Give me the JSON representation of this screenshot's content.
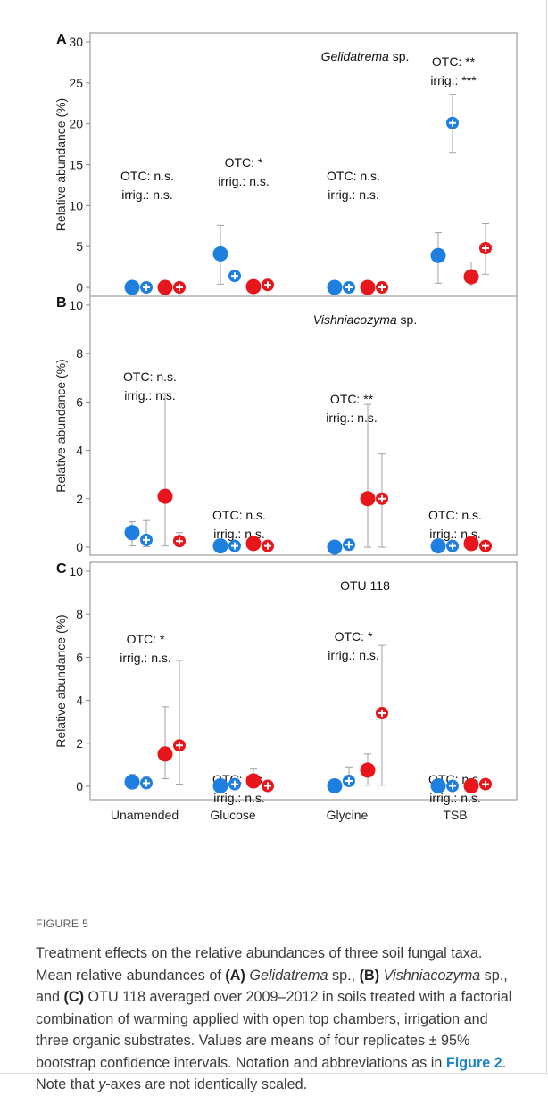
{
  "figure_label": "FIGURE 5",
  "caption": {
    "t1": "Treatment effects on the relative abundances of three soil fungal taxa. Mean relative abundances of ",
    "a_label": "(A)",
    "a_taxon": "Gelidatrema",
    "a_rest": " sp., ",
    "b_label": "(B)",
    "b_taxon": "Vishniacozyma",
    "b_rest": " sp., and ",
    "c_label": "(C)",
    "c_rest": " OTU 118 averaged over 2009–2012 in soils treated with a factorial combination of warming applied with open top chambers, irrigation and three organic substrates. Values are means of four replicates ± 95% bootstrap confidence intervals. Notation and abbreviations as in ",
    "link": "Figure 2",
    "t2": ". Note that ",
    "y_ital": "y",
    "t3": "-axes are not identically scaled."
  },
  "colors": {
    "blue": "#1f7fe0",
    "red": "#e8161b",
    "error": "#a0a0a0",
    "axis": "#888888"
  },
  "chart_data": [
    {
      "panel": "A",
      "type": "scatter",
      "title": "Gelidatrema sp.",
      "title_italic": "Gelidatrema",
      "title_rest": " sp.",
      "ylabel": "Relative abundance (%)",
      "ylim": [
        0,
        30
      ],
      "yticks": [
        0,
        5,
        10,
        15,
        20,
        25,
        30
      ],
      "categories": [
        "Unamended",
        "Glucose",
        "Glycine",
        "TSB"
      ],
      "series": [
        {
          "values": [
            0,
            4.1,
            0,
            3.9
          ],
          "lower": [
            0,
            0.4,
            0,
            0.5
          ],
          "upper": [
            0,
            7.6,
            0,
            6.7
          ],
          "color": "blue",
          "plus": false
        },
        {
          "values": [
            0,
            1.4,
            0,
            20.1
          ],
          "lower": [
            0,
            1.4,
            0,
            16.5
          ],
          "upper": [
            0,
            1.4,
            0,
            23.6
          ],
          "color": "blue",
          "plus": true
        },
        {
          "values": [
            0,
            0.1,
            0,
            1.3
          ],
          "lower": [
            0,
            0.1,
            0,
            0.2
          ],
          "upper": [
            0,
            0.1,
            0,
            3.1
          ],
          "color": "red",
          "plus": false
        },
        {
          "values": [
            0,
            0.3,
            0,
            4.8
          ],
          "lower": [
            0,
            0.3,
            0,
            1.6
          ],
          "upper": [
            0,
            0.3,
            0,
            7.8
          ],
          "color": "red",
          "plus": true
        }
      ],
      "annotations": [
        {
          "lines": [
            "OTC: n.s.",
            "irrig.: n.s."
          ],
          "category": 0
        },
        {
          "lines": [
            "OTC: *",
            "irrig.: n.s."
          ],
          "category": 1
        },
        {
          "lines": [
            "OTC: n.s.",
            "irrig.: n.s."
          ],
          "category": 2
        },
        {
          "lines": [
            "OTC: **",
            "irrig.: ***"
          ],
          "category": 3
        }
      ]
    },
    {
      "panel": "B",
      "type": "scatter",
      "title": "Vishniacozyma sp.",
      "title_italic": "Vishniacozyma",
      "title_rest": " sp.",
      "ylabel": "Relative abundance (%)",
      "ylim": [
        0,
        10
      ],
      "yticks": [
        0,
        2,
        4,
        6,
        8,
        10
      ],
      "categories": [
        "Unamended",
        "Glucose",
        "Glycine",
        "TSB"
      ],
      "series": [
        {
          "values": [
            0.6,
            0.05,
            0,
            0.05
          ],
          "lower": [
            0.05,
            0.05,
            0,
            0.05
          ],
          "upper": [
            1.05,
            0.05,
            0,
            0.05
          ],
          "color": "blue",
          "plus": false
        },
        {
          "values": [
            0.3,
            0.05,
            0.1,
            0.05
          ],
          "lower": [
            0.02,
            0.05,
            0.1,
            0.05
          ],
          "upper": [
            1.1,
            0.05,
            0.1,
            0.05
          ],
          "color": "blue",
          "plus": true
        },
        {
          "values": [
            2.1,
            0.15,
            2.0,
            0.15
          ],
          "lower": [
            0.05,
            0.15,
            0.0,
            0.15
          ],
          "upper": [
            6.35,
            0.15,
            5.9,
            0.15
          ],
          "color": "red",
          "plus": false
        },
        {
          "values": [
            0.25,
            0.05,
            2.0,
            0.05
          ],
          "lower": [
            0.1,
            0.05,
            0.0,
            0.05
          ],
          "upper": [
            0.6,
            0.05,
            3.85,
            0.05
          ],
          "color": "red",
          "plus": true
        }
      ],
      "annotations": [
        {
          "lines": [
            "OTC: n.s.",
            "irrig.: n.s."
          ],
          "category": 0
        },
        {
          "lines": [
            "OTC: n.s.",
            "irrig.: n.s."
          ],
          "category": 1
        },
        {
          "lines": [
            "OTC: **",
            "irrig.: n.s."
          ],
          "category": 2
        },
        {
          "lines": [
            "OTC: n.s.",
            "irrig.: n.s."
          ],
          "category": 3
        }
      ]
    },
    {
      "panel": "C",
      "type": "scatter",
      "title": "OTU 118",
      "title_italic": "",
      "title_rest": "OTU 118",
      "ylabel": "Relative abundance (%)",
      "ylim": [
        0,
        10
      ],
      "yticks": [
        0,
        2,
        4,
        6,
        8,
        10
      ],
      "categories": [
        "Unamended",
        "Glucose",
        "Glycine",
        "TSB"
      ],
      "series": [
        {
          "values": [
            0.2,
            0.02,
            0.02,
            0.02
          ],
          "lower": [
            0.05,
            0.02,
            0.02,
            0.02
          ],
          "upper": [
            0.55,
            0.02,
            0.02,
            0.02
          ],
          "color": "blue",
          "plus": false
        },
        {
          "values": [
            0.15,
            0.1,
            0.25,
            0.02
          ],
          "lower": [
            0.05,
            0.1,
            0.05,
            0.02
          ],
          "upper": [
            0.45,
            0.1,
            0.9,
            0.02
          ],
          "color": "blue",
          "plus": true
        },
        {
          "values": [
            1.5,
            0.25,
            0.75,
            0.02
          ],
          "lower": [
            0.35,
            0.05,
            0.05,
            0.02
          ],
          "upper": [
            3.7,
            0.8,
            1.5,
            0.02
          ],
          "color": "red",
          "plus": false
        },
        {
          "values": [
            1.9,
            0.02,
            3.4,
            0.1
          ],
          "lower": [
            0.1,
            0.02,
            0.05,
            0.1
          ],
          "upper": [
            5.85,
            0.02,
            6.55,
            0.1
          ],
          "color": "red",
          "plus": true
        }
      ],
      "annotations": [
        {
          "lines": [
            "OTC: *",
            "irrig.: n.s."
          ],
          "category": 0
        },
        {
          "lines": [
            "OTC: n.s.",
            "irrig.: n.s."
          ],
          "category": 1
        },
        {
          "lines": [
            "OTC: *",
            "irrig.: n.s."
          ],
          "category": 2
        },
        {
          "lines": [
            "OTC: n.s.",
            "irrig.: n.s."
          ],
          "category": 3
        }
      ]
    }
  ]
}
